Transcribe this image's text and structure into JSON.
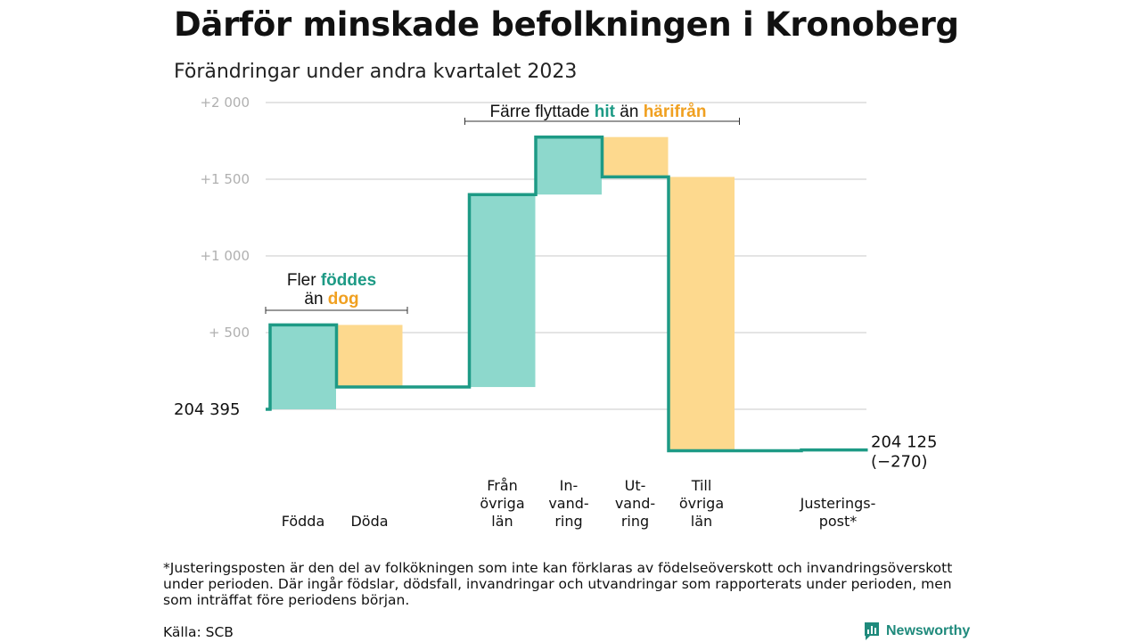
{
  "header": {
    "title": "Därför minskade befolkningen i Kronoberg",
    "subtitle": "Förändringar under andra kvartalet 2023"
  },
  "colors": {
    "increase": "#8dd8cc",
    "decrease": "#fdd98e",
    "line": "#1d9a85",
    "accent_hit": "#1d9a85",
    "accent_harifran": "#f0a020",
    "grid": "#dcdcdc"
  },
  "chart_data": {
    "type": "waterfall",
    "title": "Därför minskade befolkningen i Kronoberg",
    "subtitle": "Förändringar under andra kvartalet 2023",
    "start_value": 204395,
    "start_label": "204   395",
    "end_value": 204125,
    "end_label": "204 125",
    "net_change_label": "(−270)",
    "ylim": [
      -270,
      2000
    ],
    "yticks": [
      {
        "value": 2000,
        "label": "+2   000"
      },
      {
        "value": 1500,
        "label": "+1   500"
      },
      {
        "value": 1000,
        "label": "+1   000"
      },
      {
        "value": 500,
        "label": "+   500"
      }
    ],
    "grid": true,
    "steps": [
      {
        "label": [
          "Födda"
        ],
        "change": 550,
        "kind": "increase"
      },
      {
        "label": [
          "Döda"
        ],
        "change": -405,
        "kind": "decrease"
      },
      {
        "label": [],
        "change": 0,
        "kind": "gap"
      },
      {
        "label": [
          "Från",
          "övriga",
          "län"
        ],
        "change": 1255,
        "kind": "increase"
      },
      {
        "label": [
          "In-",
          "vand-",
          "ring"
        ],
        "change": 375,
        "kind": "increase"
      },
      {
        "label": [
          "Ut-",
          "vand-",
          "ring"
        ],
        "change": -260,
        "kind": "decrease"
      },
      {
        "label": [
          "Till",
          "övriga",
          "län"
        ],
        "change": -1785,
        "kind": "decrease"
      },
      {
        "label": [],
        "change": 0,
        "kind": "gap"
      },
      {
        "label": [
          "Justerings-",
          "post*"
        ],
        "change": 5,
        "kind": "increase"
      }
    ],
    "annotations": [
      {
        "lines": [
          [
            {
              "text": "Fler ",
              "style": "normal"
            },
            {
              "text": "föddes",
              "style": "hit"
            }
          ],
          [
            {
              "text": "än ",
              "style": "normal"
            },
            {
              "text": "dog",
              "style": "harifran"
            }
          ]
        ],
        "spans_steps": [
          0,
          1
        ]
      },
      {
        "lines": [
          [
            {
              "text": "Färre flyttade ",
              "style": "normal"
            },
            {
              "text": "hit",
              "style": "hit"
            },
            {
              "text": " än ",
              "style": "normal"
            },
            {
              "text": "härifrån",
              "style": "harifran"
            }
          ]
        ],
        "spans_steps": [
          3,
          6
        ]
      }
    ]
  },
  "footer": {
    "footnote": "*Justeringsposten är den del av folkökningen som inte kan förklaras av födelseöverskott och invandringsöverskott under perioden. Där ingår födslar, dödsfall, invandringar och utvandringar som rapporterats under perioden, men som inträffat före periodens början.",
    "source": "Källa: SCB",
    "brand": "Newsworthy"
  }
}
